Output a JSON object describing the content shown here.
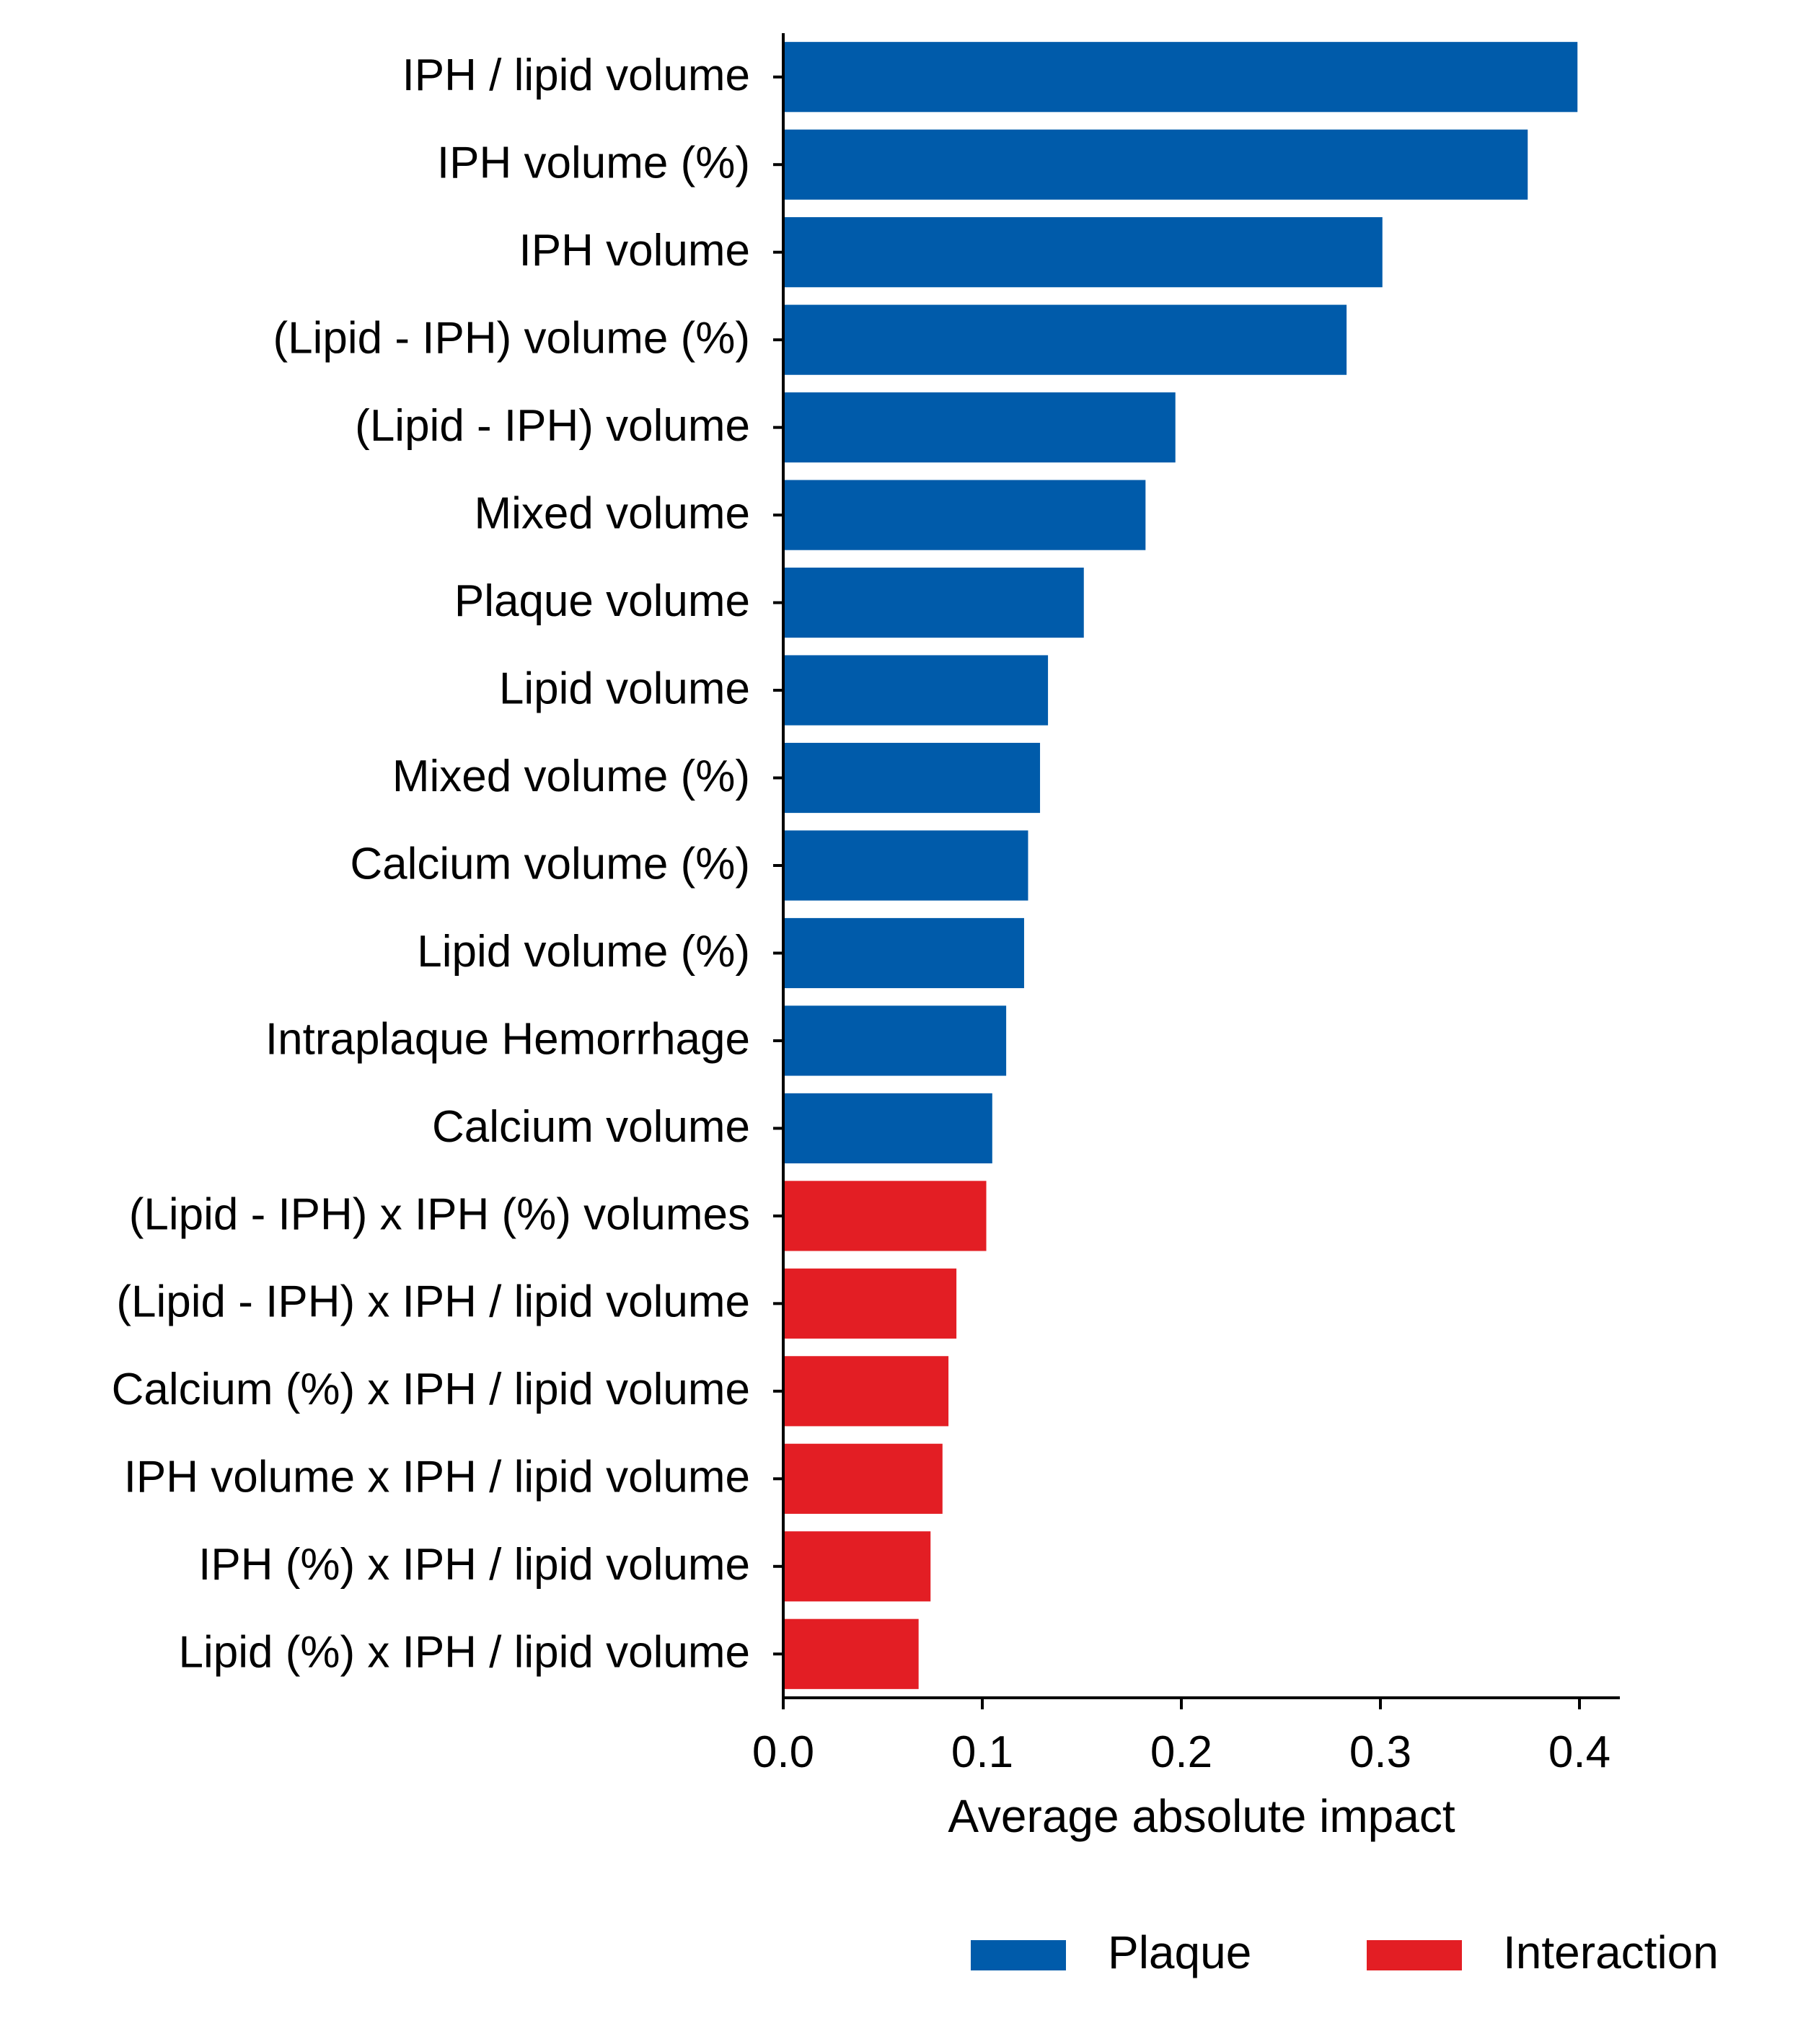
{
  "chart_data": {
    "type": "bar",
    "orientation": "horizontal",
    "xlabel": "Average absolute impact",
    "ylabel": "",
    "xlim": [
      0,
      0.42
    ],
    "xticks": [
      0.0,
      0.1,
      0.2,
      0.3,
      0.4
    ],
    "xtick_labels": [
      "0.0",
      "0.1",
      "0.2",
      "0.3",
      "0.4"
    ],
    "grid": false,
    "legend_position": "bottom-right",
    "legend": [
      {
        "name": "Plaque",
        "color": "#005baa"
      },
      {
        "name": "Interaction",
        "color": "#e31e24"
      }
    ],
    "categories": [
      "IPH / lipid volume",
      "IPH volume (%)",
      "IPH volume",
      "(Lipid - IPH) volume (%)",
      "(Lipid - IPH) volume",
      "Mixed volume",
      "Plaque volume",
      "Lipid volume",
      "Mixed volume (%)",
      "Calcium volume (%)",
      "Lipid volume (%)",
      "Intraplaque Hemorrhage",
      "Calcium volume",
      "(Lipid - IPH) x IPH (%) volumes",
      "(Lipid - IPH) x IPH / lipid volume",
      "Calcium (%) x IPH / lipid volume",
      "IPH volume x IPH / lipid volume",
      "IPH (%) x IPH / lipid volume",
      "Lipid (%) x IPH / lipid volume"
    ],
    "values": [
      0.399,
      0.374,
      0.301,
      0.283,
      0.197,
      0.182,
      0.151,
      0.133,
      0.129,
      0.123,
      0.121,
      0.112,
      0.105,
      0.102,
      0.087,
      0.083,
      0.08,
      0.074,
      0.068
    ],
    "groups": [
      "Plaque",
      "Plaque",
      "Plaque",
      "Plaque",
      "Plaque",
      "Plaque",
      "Plaque",
      "Plaque",
      "Plaque",
      "Plaque",
      "Plaque",
      "Plaque",
      "Plaque",
      "Interaction",
      "Interaction",
      "Interaction",
      "Interaction",
      "Interaction",
      "Interaction"
    ]
  }
}
